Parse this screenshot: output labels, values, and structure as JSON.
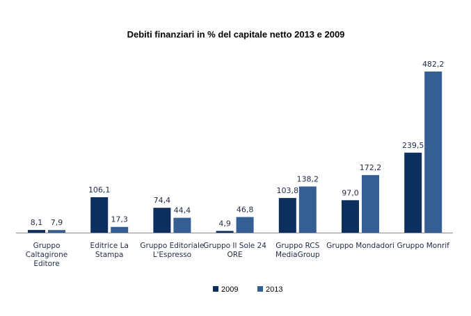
{
  "chart_data": {
    "type": "bar",
    "title": "Debiti finanziari in % del capitale netto 2013 e 2009",
    "xlabel": "",
    "ylabel": "",
    "ylim": [
      0,
      482.2
    ],
    "grid": false,
    "legend_position": "bottom",
    "categories": [
      [
        "Gruppo",
        "Caltagirone",
        "Editore"
      ],
      [
        "Editrice La",
        "Stampa"
      ],
      [
        "Gruppo Editoriale",
        "L'Espresso"
      ],
      [
        "Gruppo Il Sole 24",
        "ORE"
      ],
      [
        "Gruppo RCS",
        "MediaGroup"
      ],
      [
        "Gruppo Mondadori"
      ],
      [
        "Gruppo Monrif"
      ]
    ],
    "series": [
      {
        "name": "2009",
        "color": "#0d2f5e",
        "values": [
          8.1,
          106.1,
          74.4,
          4.9,
          103.8,
          97.0,
          239.5
        ],
        "labels": [
          "8,1",
          "106,1",
          "74,4",
          "4,9",
          "103,8",
          "97,0",
          "239,5"
        ]
      },
      {
        "name": "2013",
        "color": "#355f94",
        "values": [
          7.9,
          17.3,
          44.4,
          46.8,
          138.2,
          172.2,
          482.2
        ],
        "labels": [
          "7,9",
          "17,3",
          "44,4",
          "46,8",
          "138,2",
          "172,2",
          "482,2"
        ]
      }
    ]
  }
}
